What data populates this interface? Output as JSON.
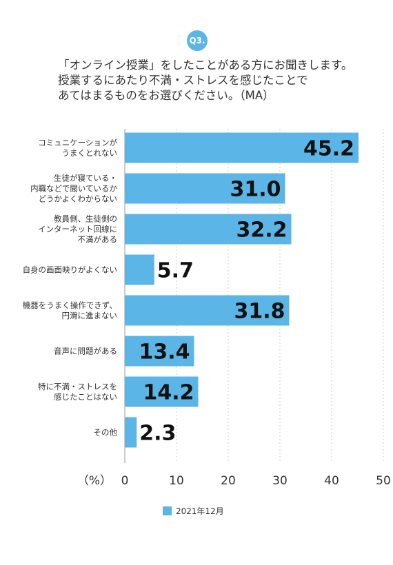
{
  "badge": "Q3.",
  "question_lines": [
    "「オンライン授業」をしたことがある方にお聞きします。",
    "授業するにあたり不満・ストレスを感じたことで",
    "あてはまるものをお選びください。（MA）"
  ],
  "chart_data": {
    "type": "bar",
    "orientation": "horizontal",
    "categories": [
      [
        "コミュニケーションが",
        "うまくとれない"
      ],
      [
        "生徒が寝ている・",
        "内職などで聞いているか",
        "どうかよくわからない"
      ],
      [
        "教員側、生徒側の",
        "インターネット回線に",
        "不満がある"
      ],
      [
        "自身の画面映りがよくない"
      ],
      [
        "機器をうまく操作できず、",
        "円滑に進まない"
      ],
      [
        "音声に問題がある"
      ],
      [
        "特に不満・ストレスを",
        "感じたことはない"
      ],
      [
        "その他"
      ]
    ],
    "series": [
      {
        "name": "2021年12月",
        "values": [
          45.2,
          31.0,
          32.2,
          5.7,
          31.8,
          13.4,
          14.2,
          2.3
        ]
      }
    ],
    "value_labels": [
      "45.2",
      "31.0",
      "32.2",
      "5.7",
      "31.8",
      "13.4",
      "14.2",
      "2.3"
    ],
    "xlabel": "（%）",
    "xlim": [
      0,
      50
    ],
    "xticks": [
      0,
      10,
      20,
      30,
      40,
      50
    ],
    "grid": true,
    "legend_position": "bottom",
    "colors": {
      "bar": "#5bb5e6",
      "grid": "#cccccc",
      "axis": "#999999",
      "text": "#333333"
    }
  }
}
